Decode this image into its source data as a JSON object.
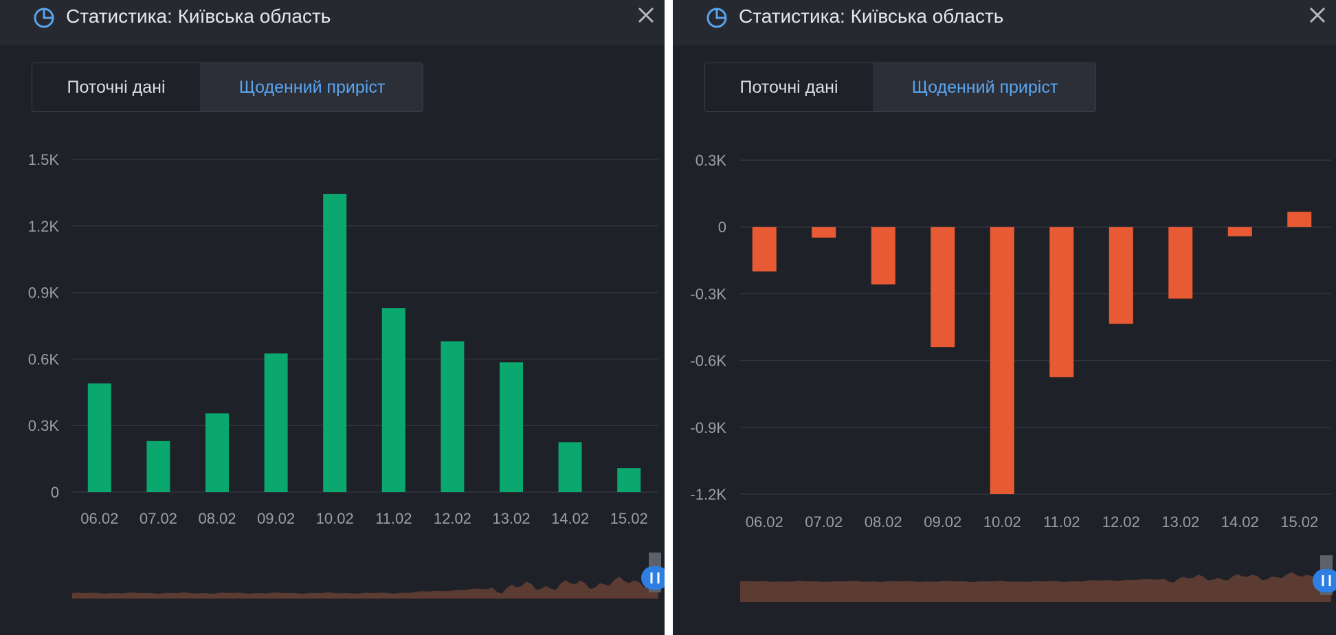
{
  "panels": [
    {
      "title": "Статистика: Київська область",
      "tabs": {
        "current": "Поточні дані",
        "daily": "Щоденний приріст",
        "active": "daily"
      },
      "icons": {
        "header": "pie-chart-icon",
        "close": "close-icon",
        "handle": "slider-handle-icon"
      },
      "colors": {
        "bar": "#0aa76e",
        "navigator": "#5c3b32",
        "accent": "#5aa4ee"
      },
      "chart_data": {
        "type": "bar",
        "categories": [
          "06.02",
          "07.02",
          "08.02",
          "09.02",
          "10.02",
          "11.02",
          "12.02",
          "13.02",
          "14.02",
          "15.02"
        ],
        "values": [
          490,
          230,
          355,
          625,
          1345,
          830,
          680,
          585,
          225,
          108
        ],
        "ylim": [
          0,
          1500
        ],
        "yticks": [
          0,
          300,
          600,
          900,
          1200,
          1500
        ],
        "yticklabels": [
          "0",
          "0.3K",
          "0.6K",
          "0.9K",
          "1.2K",
          "1.5K"
        ],
        "grid": true,
        "navigator": true
      }
    },
    {
      "title": "Статистика: Київська область",
      "tabs": {
        "current": "Поточні дані",
        "daily": "Щоденний приріст",
        "active": "daily"
      },
      "icons": {
        "header": "pie-chart-icon",
        "close": "close-icon",
        "handle": "slider-handle-icon"
      },
      "colors": {
        "bar": "#e85a34",
        "navigator": "#5c3b32",
        "accent": "#5aa4ee"
      },
      "chart_data": {
        "type": "bar",
        "categories": [
          "06.02",
          "07.02",
          "08.02",
          "09.02",
          "10.02",
          "11.02",
          "12.02",
          "13.02",
          "14.02",
          "15.02"
        ],
        "values": [
          -200,
          -48,
          -258,
          -540,
          -1200,
          -675,
          -435,
          -322,
          -42,
          68
        ],
        "ylim": [
          -1200,
          300
        ],
        "yticks": [
          300,
          0,
          -300,
          -600,
          -900,
          -1200
        ],
        "yticklabels": [
          "0.3K",
          "0",
          "-0.3K",
          "-0.6K",
          "-0.9K",
          "-1.2K"
        ],
        "grid": true,
        "navigator": true
      }
    }
  ]
}
